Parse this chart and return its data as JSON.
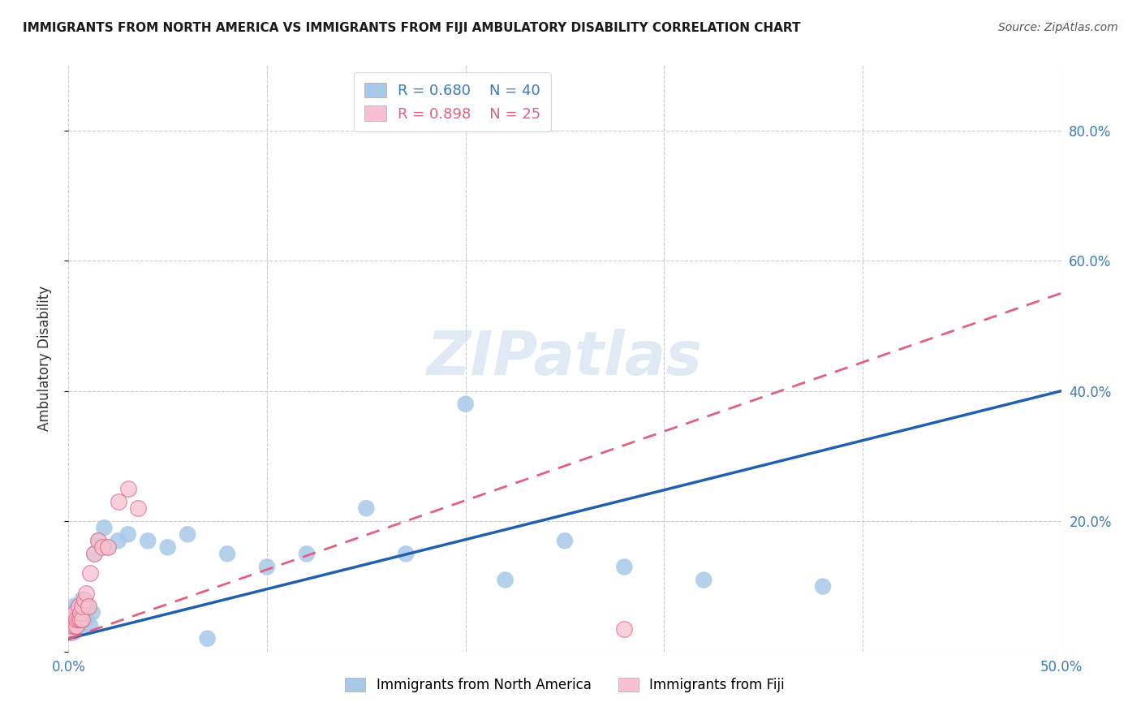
{
  "title": "IMMIGRANTS FROM NORTH AMERICA VS IMMIGRANTS FROM FIJI AMBULATORY DISABILITY CORRELATION CHART",
  "source": "Source: ZipAtlas.com",
  "ylabel": "Ambulatory Disability",
  "xlim": [
    0.0,
    0.5
  ],
  "ylim": [
    0.0,
    0.9
  ],
  "xticks": [
    0.0,
    0.1,
    0.2,
    0.3,
    0.4,
    0.5
  ],
  "yticks": [
    0.0,
    0.2,
    0.4,
    0.6,
    0.8
  ],
  "north_america_R": 0.68,
  "north_america_N": 40,
  "fiji_R": 0.898,
  "fiji_N": 25,
  "north_america_color": "#a8c8e8",
  "north_america_line_color": "#2060b0",
  "fiji_color": "#f8c0d0",
  "fiji_line_color": "#e06080",
  "north_america_x": [
    0.001,
    0.002,
    0.002,
    0.003,
    0.003,
    0.003,
    0.004,
    0.004,
    0.005,
    0.005,
    0.006,
    0.006,
    0.007,
    0.007,
    0.008,
    0.009,
    0.01,
    0.011,
    0.012,
    0.013,
    0.015,
    0.018,
    0.02,
    0.025,
    0.03,
    0.04,
    0.05,
    0.06,
    0.07,
    0.08,
    0.1,
    0.12,
    0.15,
    0.17,
    0.2,
    0.22,
    0.25,
    0.28,
    0.32,
    0.38
  ],
  "north_america_y": [
    0.04,
    0.05,
    0.06,
    0.03,
    0.05,
    0.07,
    0.04,
    0.06,
    0.05,
    0.07,
    0.04,
    0.06,
    0.05,
    0.08,
    0.06,
    0.05,
    0.07,
    0.04,
    0.06,
    0.15,
    0.17,
    0.19,
    0.16,
    0.17,
    0.18,
    0.17,
    0.16,
    0.18,
    0.02,
    0.15,
    0.13,
    0.15,
    0.22,
    0.15,
    0.38,
    0.11,
    0.17,
    0.13,
    0.11,
    0.1
  ],
  "fiji_x": [
    0.001,
    0.002,
    0.002,
    0.003,
    0.003,
    0.004,
    0.004,
    0.005,
    0.005,
    0.006,
    0.006,
    0.007,
    0.007,
    0.008,
    0.009,
    0.01,
    0.011,
    0.013,
    0.015,
    0.017,
    0.02,
    0.025,
    0.03,
    0.035,
    0.28
  ],
  "fiji_y": [
    0.03,
    0.04,
    0.05,
    0.04,
    0.06,
    0.04,
    0.05,
    0.05,
    0.07,
    0.05,
    0.06,
    0.05,
    0.07,
    0.08,
    0.09,
    0.07,
    0.12,
    0.15,
    0.17,
    0.16,
    0.16,
    0.23,
    0.25,
    0.22,
    0.035
  ],
  "na_line_x": [
    0.0,
    0.5
  ],
  "na_line_y": [
    0.02,
    0.4
  ],
  "fj_line_x": [
    0.0,
    0.5
  ],
  "fj_line_y": [
    0.02,
    0.55
  ]
}
